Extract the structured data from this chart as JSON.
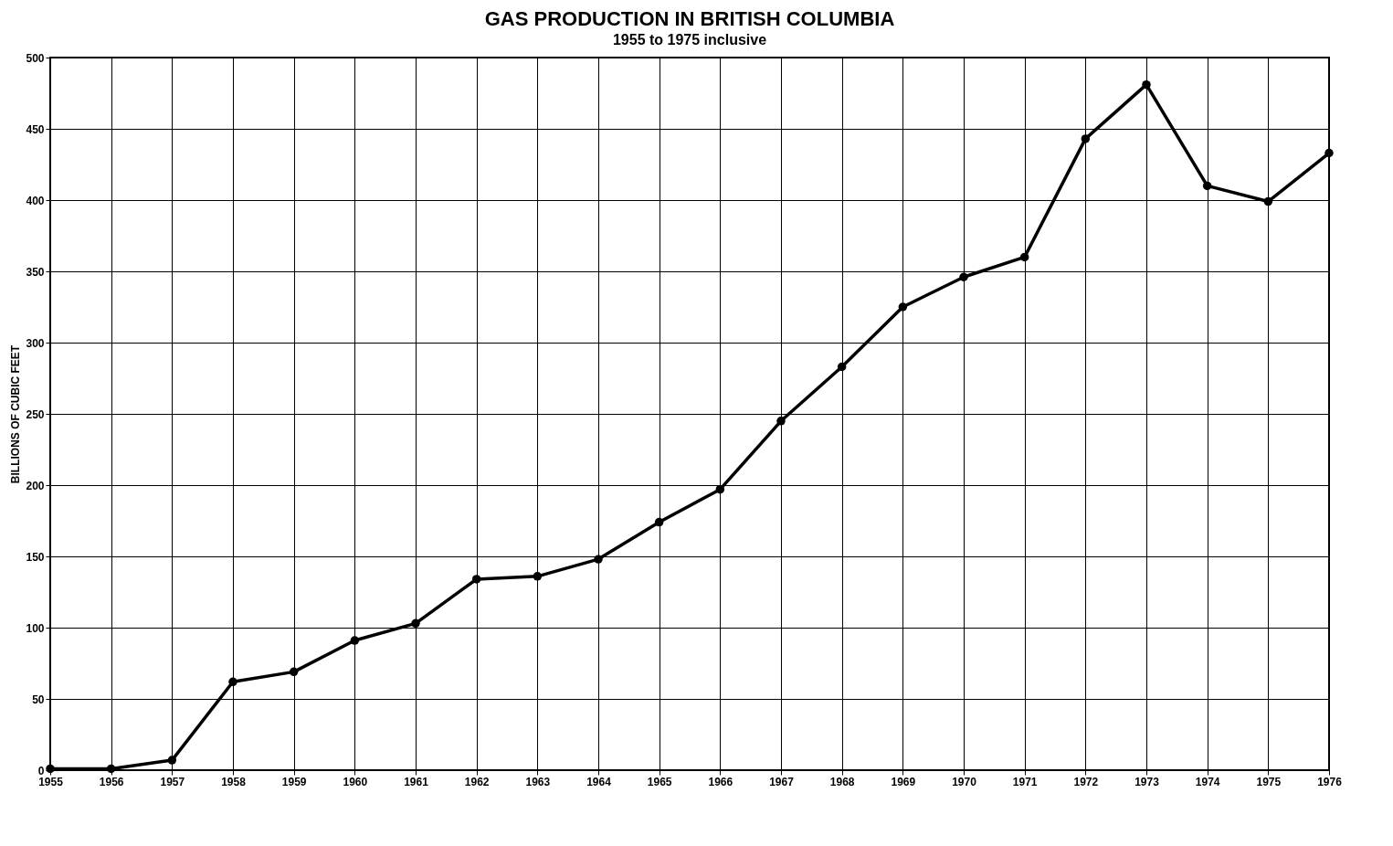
{
  "chart_data": {
    "type": "line",
    "title": "GAS PRODUCTION IN BRITISH COLUMBIA",
    "subtitle": "1955 to 1975 inclusive",
    "ylabel": "BILLIONS OF CUBIC FEET",
    "x": [
      1955,
      1956,
      1957,
      1958,
      1959,
      1960,
      1961,
      1962,
      1963,
      1964,
      1965,
      1966,
      1967,
      1968,
      1969,
      1970,
      1971,
      1972,
      1973,
      1974,
      1975,
      1976
    ],
    "series": [
      {
        "color": "#000000",
        "values": [
          1,
          1,
          7,
          62,
          69,
          91,
          103,
          134,
          136,
          148,
          174,
          197,
          245,
          283,
          325,
          346,
          360,
          443,
          481,
          410,
          399,
          433
        ]
      }
    ],
    "xlim": [
      1955,
      1976
    ],
    "xticks": [
      1955,
      1956,
      1957,
      1958,
      1959,
      1960,
      1961,
      1962,
      1963,
      1964,
      1965,
      1966,
      1967,
      1968,
      1969,
      1970,
      1971,
      1972,
      1973,
      1974,
      1975,
      1976
    ],
    "ylim": [
      0,
      500
    ],
    "yticks": [
      0,
      50,
      100,
      150,
      200,
      250,
      300,
      350,
      400,
      450,
      500
    ],
    "grid": true,
    "marker": "circle",
    "line_style": "solid"
  }
}
